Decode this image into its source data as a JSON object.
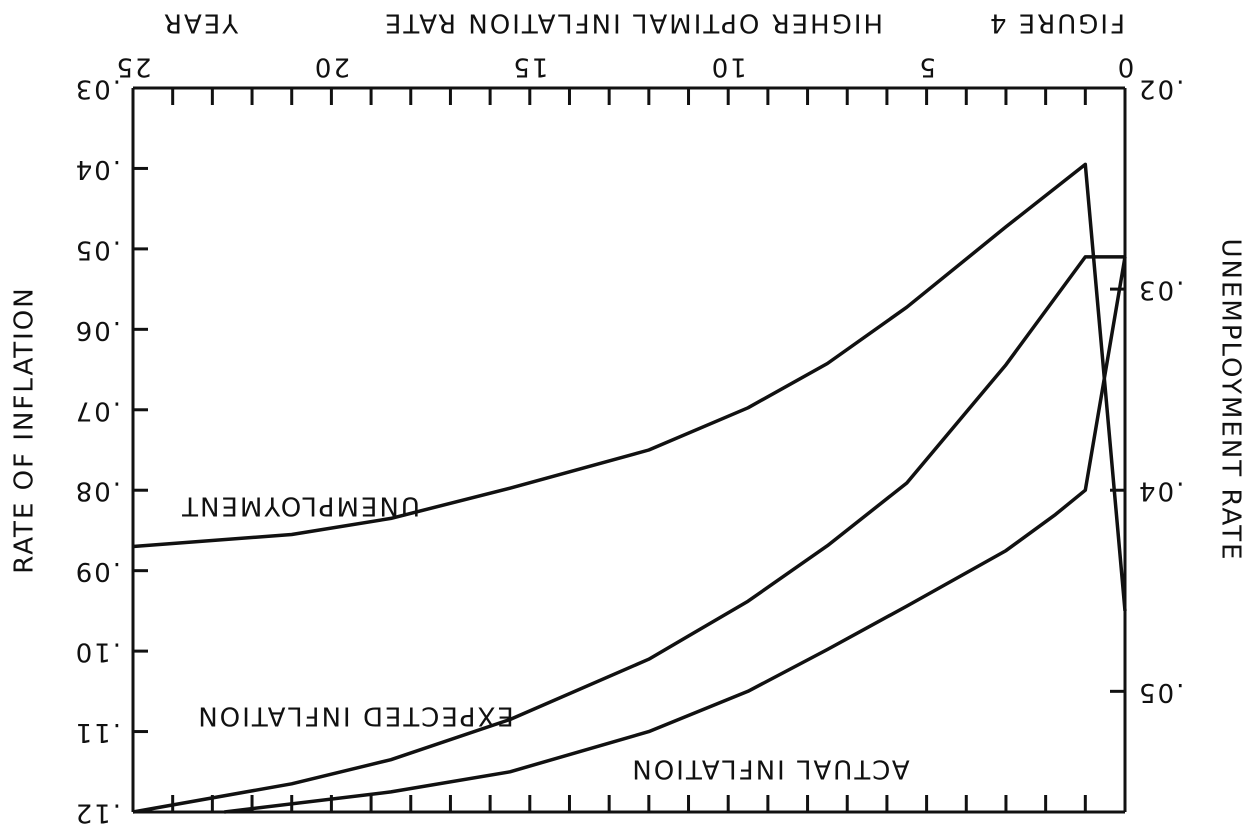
{
  "chart_data": {
    "type": "line",
    "rotation": 180,
    "title": "FIGURE 4",
    "subtitle": "HIGHER OPTIMAL INFLATION RATE",
    "x_label": "YEAR",
    "y_label": "UNEMPLOYMENT RATE",
    "y2_label": "RATE OF INFLATION",
    "xlim": [
      0,
      25
    ],
    "xticks": [
      0,
      5,
      10,
      15,
      20,
      25
    ],
    "xminorticks": [
      1,
      2,
      3,
      4,
      6,
      7,
      8,
      9,
      11,
      12,
      13,
      14,
      16,
      17,
      18,
      19,
      21,
      22,
      23,
      24
    ],
    "ylim": [
      0.02,
      0.056
    ],
    "yticks": [
      {
        "value": 0.02,
        "label": ".02"
      },
      {
        "value": 0.03,
        "label": ".03"
      },
      {
        "value": 0.04,
        "label": ".04"
      },
      {
        "value": 0.05,
        "label": ".05"
      }
    ],
    "y2lim": [
      0.03,
      0.12
    ],
    "y2ticks": [
      {
        "value": 0.03,
        "label": ".03"
      },
      {
        "value": 0.04,
        "label": ".04"
      },
      {
        "value": 0.05,
        "label": ".05"
      },
      {
        "value": 0.06,
        "label": ".06"
      },
      {
        "value": 0.07,
        "label": ".07"
      },
      {
        "value": 0.08,
        "label": ".08"
      },
      {
        "value": 0.09,
        "label": ".09"
      },
      {
        "value": 0.1,
        "label": ".10"
      },
      {
        "value": 0.11,
        "label": ".11"
      },
      {
        "value": 0.12,
        "label": ".12"
      }
    ],
    "series": [
      {
        "name": "UNEMPLOYMENT",
        "color": "#111111",
        "axis": "y",
        "x": [
          0,
          1,
          3,
          5.5,
          7.5,
          9.5,
          12,
          15.5,
          18.5,
          21,
          25
        ],
        "values": [
          0.046,
          0.0238,
          0.0269,
          0.0309,
          0.0337,
          0.0359,
          0.038,
          0.0399,
          0.0414,
          0.0422,
          0.0428
        ]
      },
      {
        "name": "EXPECTED INFLATION",
        "color": "#111111",
        "axis": "y2",
        "x": [
          0,
          1,
          3,
          5.5,
          7.5,
          9.5,
          12,
          15.5,
          18.5,
          21,
          25
        ],
        "values": [
          0.051,
          0.051,
          0.0644,
          0.0791,
          0.0869,
          0.0938,
          0.101,
          0.1085,
          0.1135,
          0.1165,
          0.12
        ]
      },
      {
        "name": "ACTUAL INFLATION",
        "color": "#111111",
        "axis": "y2",
        "x": [
          0,
          1,
          1.75,
          3,
          5.5,
          7.5,
          9.5,
          12,
          15.5,
          18.5,
          22.7
        ],
        "values": [
          0.051,
          0.08,
          0.083,
          0.0875,
          0.0944,
          0.0998,
          0.105,
          0.11,
          0.115,
          0.1175,
          0.12
        ]
      }
    ]
  }
}
